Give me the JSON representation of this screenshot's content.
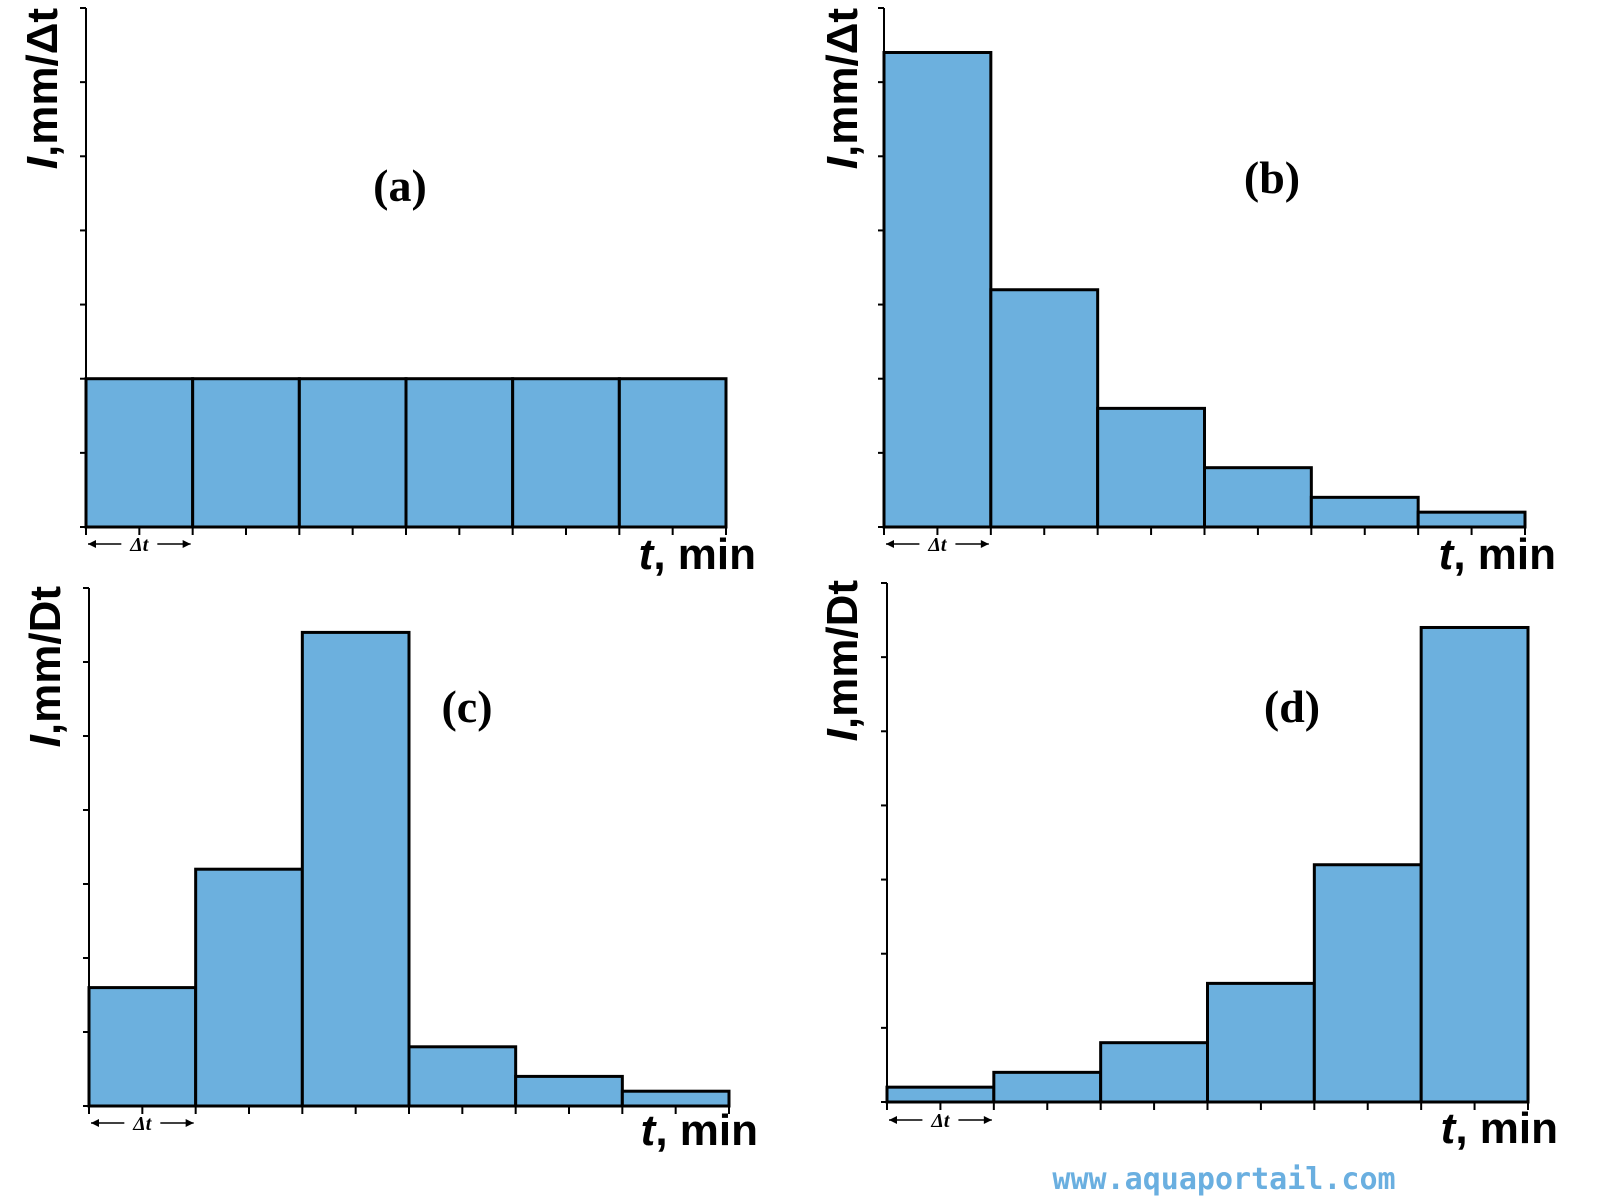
{
  "colors": {
    "bar_fill": "#6cb0de",
    "bar_stroke": "#000000",
    "axis": "#000000",
    "watermark": "#6aafe0"
  },
  "watermark": "www.aquaportail.com",
  "chart_data": [
    {
      "type": "bar",
      "panel_label": "(a)",
      "ylabel_italic": "I",
      "ylabel_rest": ",mm/Δt",
      "xlabel_italic": "t",
      "xlabel_rest": ", min",
      "bar_width_label": "Δt",
      "values": [
        2,
        2,
        2,
        2,
        2,
        2
      ],
      "ylim": [
        0,
        7
      ],
      "y_ticks": 7,
      "x_ticks": 12
    },
    {
      "type": "bar",
      "panel_label": "(b)",
      "ylabel_italic": "I",
      "ylabel_rest": ",mm/Δt",
      "xlabel_italic": "t",
      "xlabel_rest": ", min",
      "bar_width_label": "Δt",
      "values": [
        6.4,
        3.2,
        1.6,
        0.8,
        0.4,
        0.2
      ],
      "ylim": [
        0,
        7
      ],
      "y_ticks": 7,
      "x_ticks": 12
    },
    {
      "type": "bar",
      "panel_label": "(c)",
      "ylabel_italic": "I",
      "ylabel_rest": ",mm/Dt",
      "xlabel_italic": "t",
      "xlabel_rest": ", min",
      "bar_width_label": "Δt",
      "values": [
        1.6,
        3.2,
        6.4,
        0.8,
        0.4,
        0.2
      ],
      "ylim": [
        0,
        7
      ],
      "y_ticks": 7,
      "x_ticks": 12
    },
    {
      "type": "bar",
      "panel_label": "(d)",
      "ylabel_italic": "I",
      "ylabel_rest": ",mm/Dt",
      "xlabel_italic": "t",
      "xlabel_rest": ", min",
      "bar_width_label": "Δt",
      "values": [
        0.2,
        0.4,
        0.8,
        1.6,
        3.2,
        6.4
      ],
      "ylim": [
        0,
        7
      ],
      "y_ticks": 7,
      "x_ticks": 12
    }
  ]
}
